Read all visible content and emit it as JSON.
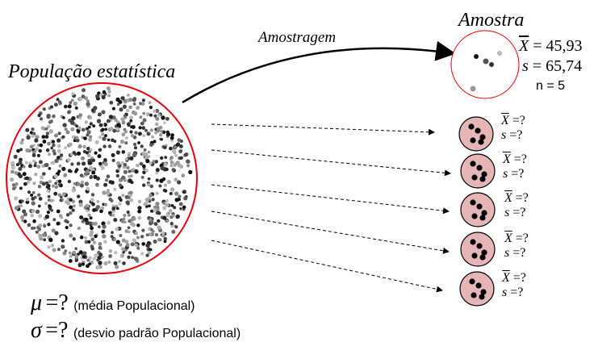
{
  "population": {
    "title": "População estatística",
    "mu_symbol": "μ",
    "mu_eq": "=?",
    "mu_desc": "(média Populacional)",
    "sigma_symbol": "σ",
    "sigma_eq": "=?",
    "sigma_desc": "(desvio padrão Populacional)",
    "border_color": "#e8000b"
  },
  "arrow_label": "Amostragem",
  "sample": {
    "title": "Amostra",
    "xbar_symbol": "X",
    "xbar_value": "= 45,93",
    "s_symbol": "s",
    "s_value": "= 65,74",
    "n_text": "n = 5",
    "border_color": "#e8000b"
  },
  "other_samples": [
    {
      "xbar_symbol": "X",
      "xbar_eq": "=?",
      "s_symbol": "s",
      "s_eq": "=?"
    },
    {
      "xbar_symbol": "X",
      "xbar_eq": "=?",
      "s_symbol": "s",
      "s_eq": "=?"
    },
    {
      "xbar_symbol": "X",
      "xbar_eq": "=?",
      "s_symbol": "s",
      "s_eq": "=?"
    },
    {
      "xbar_symbol": "X",
      "xbar_eq": "=?",
      "s_symbol": "s",
      "s_eq": "=?"
    },
    {
      "xbar_symbol": "X",
      "xbar_eq": "=?",
      "s_symbol": "s",
      "s_eq": "=?"
    }
  ],
  "colors": {
    "sample_fill": "#e6b6b6",
    "dot": "#000000"
  }
}
